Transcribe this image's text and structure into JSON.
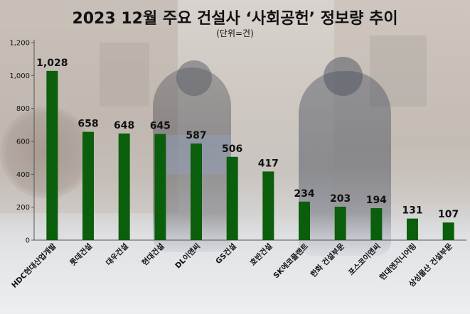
{
  "page": {
    "title": "2023 12월 주요 건설사 ‘사회공헌’ 정보량 추이",
    "subtitle": "(단위=건)"
  },
  "colors": {
    "bar": "#0b5e0b",
    "axis": "#555555",
    "text": "#111111"
  },
  "chart_data": {
    "type": "bar",
    "title": "2023 12월 주요 건설사 ‘사회공헌’ 정보량 추이",
    "subtitle": "(단위=건)",
    "categories": [
      "HDC현대산업개발",
      "롯데건설",
      "대우건설",
      "현대건설",
      "DL이앤씨",
      "GS건설",
      "호반건설",
      "SK에코플랜트",
      "한화 건설부문",
      "포스코이앤씨",
      "현대엔지니어링",
      "삼성물산 건설부문"
    ],
    "values": [
      1028,
      658,
      648,
      645,
      587,
      506,
      417,
      234,
      203,
      194,
      131,
      107
    ],
    "value_labels": [
      "1,028",
      "658",
      "648",
      "645",
      "587",
      "506",
      "417",
      "234",
      "203",
      "194",
      "131",
      "107"
    ],
    "yticks": [
      "0",
      "200",
      "400",
      "600",
      "800",
      "1,000",
      "1,200"
    ],
    "ylim": [
      0,
      1200
    ],
    "xlabel": "",
    "ylabel": "",
    "grid": false,
    "legend": "none"
  }
}
